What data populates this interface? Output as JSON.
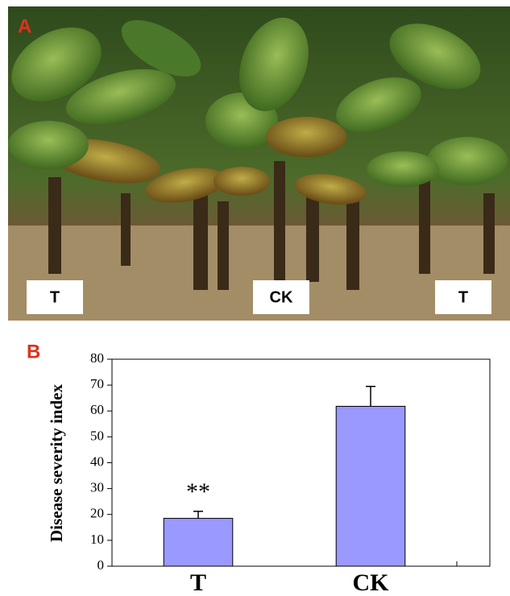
{
  "photo": {
    "panel_label": "A",
    "plot_labels": [
      "T",
      "CK",
      "T"
    ]
  },
  "chart_data": {
    "type": "bar",
    "panel_label": "B",
    "y_label": "Disease severity index",
    "categories": [
      "T",
      "CK"
    ],
    "values": [
      18.5,
      61.8
    ],
    "errors": [
      2.7,
      7.7
    ],
    "color": "#9999ff",
    "annotation": "**",
    "ylim": [
      0,
      80
    ],
    "yticks": [
      0,
      10,
      20,
      30,
      40,
      50,
      60,
      70,
      80
    ]
  }
}
